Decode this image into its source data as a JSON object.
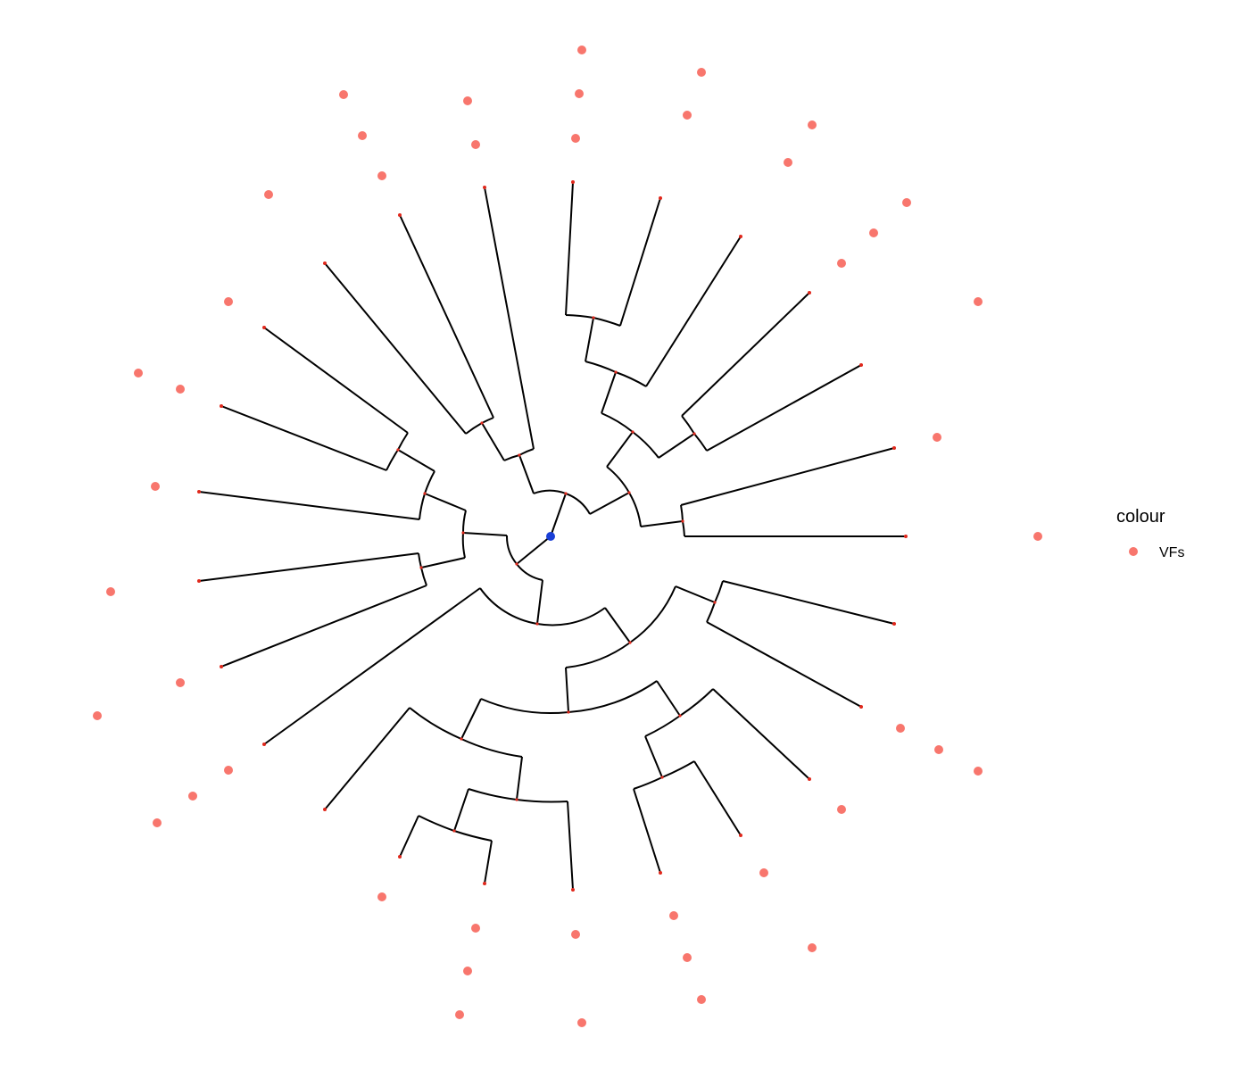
{
  "legend": {
    "title": "colour",
    "items": [
      "VFs"
    ]
  }
}
